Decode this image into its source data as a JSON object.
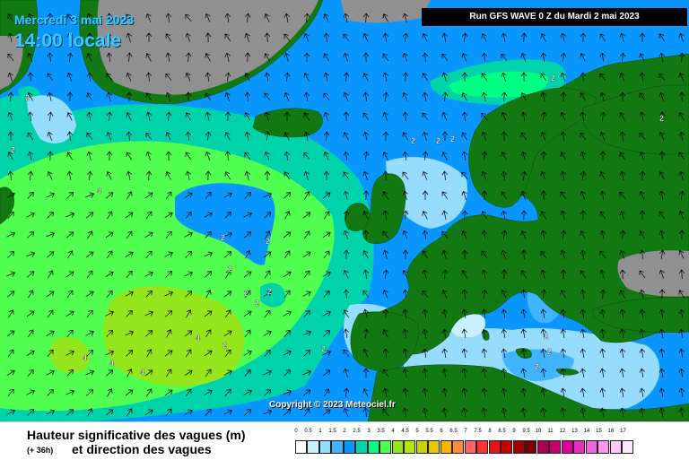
{
  "header": {
    "date": "Mercredi 3 mai 2023",
    "time": "14:00 locale",
    "run": "Run GFS WAVE 0 Z du Mardi 2 mai 2023"
  },
  "copyright": "Copyright © 2023 Meteociel.fr",
  "footer": {
    "title": "Hauteur significative des vagues (m)",
    "lead": "(+ 36h)",
    "subtitle": "et direction des vagues"
  },
  "scale": {
    "labels": [
      "0",
      "0.5",
      "1",
      "1.5",
      "2",
      "2.5",
      "3",
      "3.5",
      "4",
      "4.5",
      "5",
      "5.5",
      "6",
      "6.5",
      "7",
      "7.5",
      "8",
      "8.5",
      "9",
      "9.5",
      "10",
      "11",
      "12",
      "13",
      "14",
      "15",
      "16",
      "17"
    ],
    "colors": [
      "#ffffff",
      "#c8f0ff",
      "#96dcff",
      "#41b4ff",
      "#0a96ff",
      "#00d2aa",
      "#00ff82",
      "#50ff50",
      "#96e61e",
      "#b4e600",
      "#c8d200",
      "#e6c800",
      "#ffb400",
      "#ff8c3c",
      "#ff6464",
      "#ff3232",
      "#e61414",
      "#c80000",
      "#a00000",
      "#780000",
      "#aa0050",
      "#c8006e",
      "#dc0096",
      "#e632be",
      "#f064dc",
      "#fa96f0",
      "#ffc8fa",
      "#ffe6fc"
    ]
  },
  "map_labels": [
    {
      "text": "2"
    },
    {
      "text": "2"
    },
    {
      "text": "4"
    },
    {
      "text": "2"
    },
    {
      "text": "2"
    },
    {
      "text": "2"
    },
    {
      "text": "2"
    },
    {
      "text": "2"
    },
    {
      "text": "2"
    },
    {
      "text": "2"
    },
    {
      "text": "2"
    },
    {
      "text": "4"
    },
    {
      "text": "4"
    },
    {
      "text": "4"
    },
    {
      "text": "4"
    },
    {
      "text": "2"
    },
    {
      "text": "2"
    },
    {
      "text": "2"
    },
    {
      "text": "2"
    },
    {
      "text": "2"
    },
    {
      "text": "2"
    },
    {
      "text": "2"
    },
    {
      "text": "2"
    }
  ],
  "colors": {
    "land": "#127812",
    "ice": "#909090",
    "ocean_low": "#96dcff",
    "ocean_mid": "#0a96ff",
    "ocean_green": "#00d2aa",
    "ocean_high": "#50ff50",
    "ocean_peak": "#96e61e"
  }
}
